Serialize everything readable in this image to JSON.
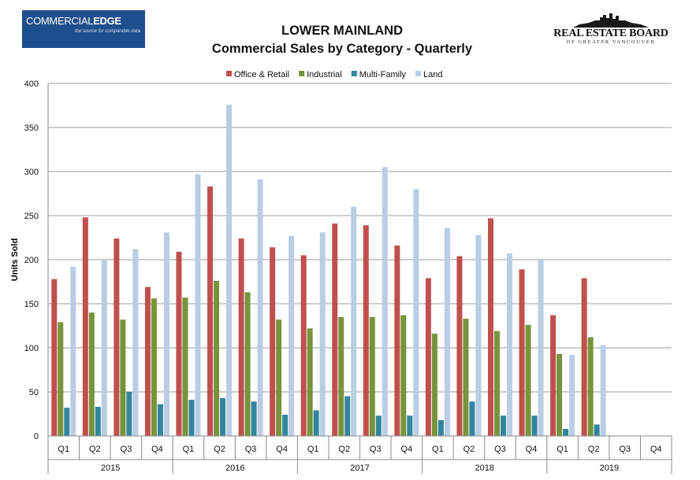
{
  "header": {
    "left_logo": {
      "brand_a": "COMMERCIAL",
      "brand_b": "EDGE",
      "tagline": "the source for comparable data"
    },
    "title_line1": "LOWER MAINLAND",
    "title_line2": "Commercial Sales by Category - Quarterly",
    "right_logo": {
      "name": "REAL ESTATE BOARD",
      "sub": "OF GREATER VANCOUVER"
    }
  },
  "chart_data": {
    "type": "bar",
    "ylabel": "Units Sold",
    "ylim": [
      0,
      400
    ],
    "yticks": [
      0,
      50,
      100,
      150,
      200,
      250,
      300,
      350,
      400
    ],
    "grid": true,
    "legend_position": "top",
    "years": [
      "2015",
      "2016",
      "2017",
      "2018",
      "2019"
    ],
    "categories": [
      "Q1",
      "Q2",
      "Q3",
      "Q4",
      "Q1",
      "Q2",
      "Q3",
      "Q4",
      "Q1",
      "Q2",
      "Q3",
      "Q4",
      "Q1",
      "Q2",
      "Q3",
      "Q4",
      "Q1",
      "Q2",
      "Q3",
      "Q4"
    ],
    "series": [
      {
        "name": "Office & Retail",
        "color": "#c0504d",
        "values": [
          178,
          248,
          224,
          169,
          209,
          283,
          224,
          214,
          205,
          241,
          239,
          216,
          179,
          204,
          247,
          189,
          137,
          179,
          null,
          null
        ]
      },
      {
        "name": "Industrial",
        "color": "#77933c",
        "values": [
          129,
          140,
          132,
          156,
          157,
          176,
          163,
          132,
          122,
          135,
          135,
          137,
          116,
          133,
          119,
          126,
          93,
          112,
          null,
          null
        ]
      },
      {
        "name": "Multi-Family",
        "color": "#31859c",
        "values": [
          32,
          33,
          50,
          36,
          41,
          43,
          39,
          24,
          29,
          45,
          23,
          23,
          18,
          39,
          23,
          23,
          8,
          13,
          null,
          null
        ]
      },
      {
        "name": "Land",
        "color": "#b9cde5",
        "values": [
          192,
          200,
          212,
          231,
          297,
          376,
          291,
          227,
          231,
          260,
          305,
          280,
          236,
          228,
          207,
          200,
          92,
          103,
          null,
          null
        ]
      }
    ]
  }
}
